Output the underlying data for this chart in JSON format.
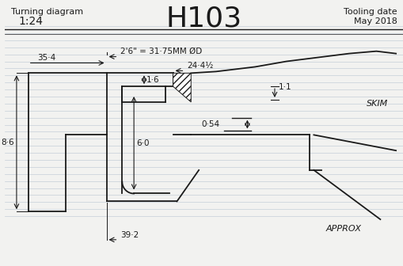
{
  "title": "H103",
  "top_left_line1": "Turning diagram",
  "top_left_line2": "1:24",
  "top_right_line1": "Tooling date",
  "top_right_line2": "May 2018",
  "bg_color": "#f2f2f0",
  "line_color": "#1a1a1a",
  "ruled_color": "#c5cfd8",
  "ann": {
    "dim_top": "2'6\" = 31·75MM ØD",
    "dim_24": "24·4½",
    "dim_35": "35·4",
    "dim_1_1": "1·1",
    "dim_1_6": "1·6",
    "dim_0_54": "0·54",
    "dim_8_6": "8·6",
    "dim_6_0": "6·0",
    "dim_39_2": "39·2",
    "skim": "SKIM",
    "approx": "APPROX"
  }
}
